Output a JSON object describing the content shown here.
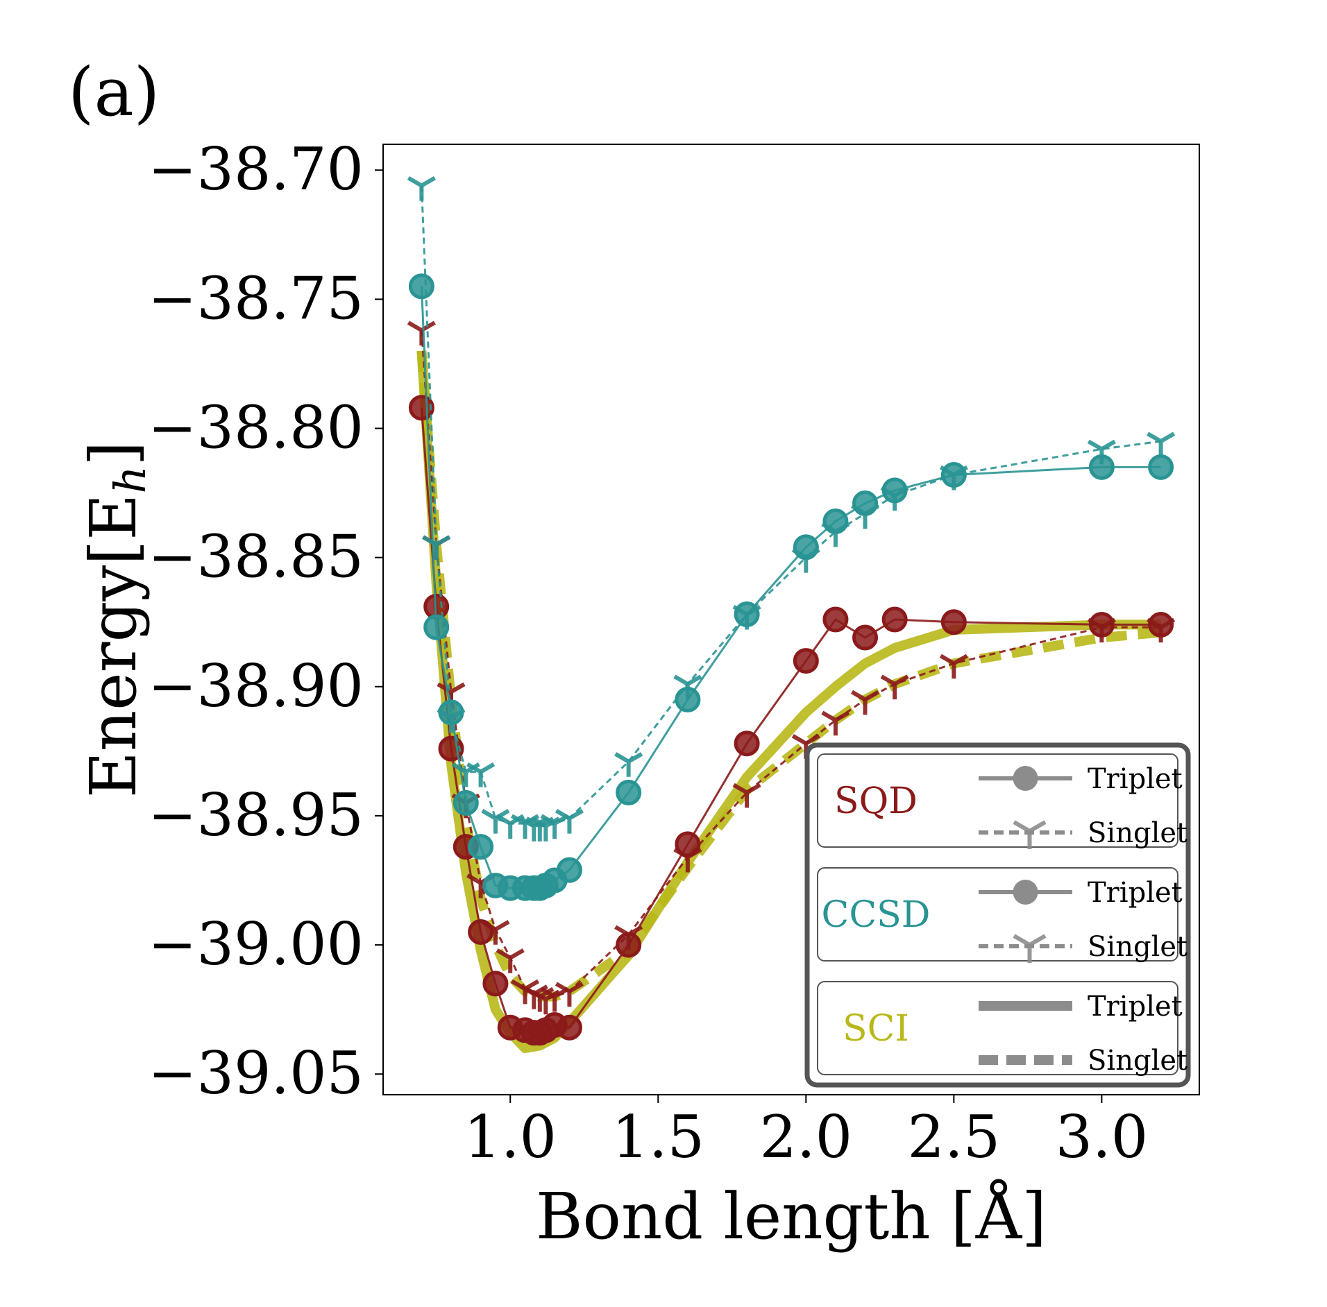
{
  "panel_label": "(a)",
  "colors": {
    "sqd": "#8b1a1a",
    "ccsd": "#2a9494",
    "sci": "#b8b81a",
    "legend_gray": "#8c8c8c",
    "frame": "#555555"
  },
  "chart_data": {
    "type": "line",
    "title": "",
    "xlabel": "Bond length [Å]",
    "ylabel": "Energy[E",
    "ylabel_sub": "h",
    "ylabel_close": "]",
    "xlim": [
      0.57,
      3.33
    ],
    "ylim": [
      -39.058,
      -38.69
    ],
    "xticks": [
      1.0,
      1.5,
      2.0,
      2.5,
      3.0
    ],
    "xtick_labels": [
      "1.0",
      "1.5",
      "2.0",
      "2.5",
      "3.0"
    ],
    "yticks": [
      -38.7,
      -38.75,
      -38.8,
      -38.85,
      -38.9,
      -38.95,
      -39.0,
      -39.05
    ],
    "ytick_labels": [
      "−38.70",
      "−38.75",
      "−38.80",
      "−38.85",
      "−38.90",
      "−38.95",
      "−39.00",
      "−39.05"
    ],
    "series": [
      {
        "name": "SCI Triplet",
        "method": "SCI",
        "state": "Triplet",
        "color_key": "sci",
        "style": "solid",
        "marker": "none",
        "x": [
          0.7,
          0.75,
          0.8,
          0.85,
          0.9,
          0.95,
          1.0,
          1.05,
          1.1,
          1.15,
          1.2,
          1.4,
          1.6,
          1.8,
          2.0,
          2.1,
          2.2,
          2.3,
          2.5,
          3.0,
          3.2
        ],
        "y": [
          -38.77,
          -38.86,
          -38.93,
          -38.972,
          -39.002,
          -39.025,
          -39.034,
          -39.04,
          -39.039,
          -39.036,
          -39.03,
          -39.004,
          -38.968,
          -38.935,
          -38.91,
          -38.9,
          -38.891,
          -38.885,
          -38.878,
          -38.876,
          -38.876
        ]
      },
      {
        "name": "SCI Singlet",
        "method": "SCI",
        "state": "Singlet",
        "color_key": "sci",
        "style": "dashed",
        "marker": "none",
        "x": [
          0.7,
          0.75,
          0.8,
          0.85,
          0.9,
          0.95,
          1.0,
          1.05,
          1.1,
          1.15,
          1.2,
          1.4,
          1.6,
          1.8,
          2.0,
          2.1,
          2.2,
          2.3,
          2.5,
          3.0,
          3.2
        ],
        "y": [
          -38.77,
          -38.845,
          -38.905,
          -38.952,
          -38.982,
          -39.0,
          -39.012,
          -39.018,
          -39.02,
          -39.02,
          -39.018,
          -39.002,
          -38.97,
          -38.94,
          -38.922,
          -38.913,
          -38.905,
          -38.899,
          -38.891,
          -38.881,
          -38.879
        ]
      },
      {
        "name": "SQD Triplet",
        "method": "SQD",
        "state": "Triplet",
        "color_key": "sqd",
        "style": "solid",
        "marker": "circle",
        "x": [
          0.7,
          0.75,
          0.8,
          0.85,
          0.9,
          0.95,
          1.0,
          1.05,
          1.08,
          1.1,
          1.12,
          1.15,
          1.2,
          1.4,
          1.6,
          1.8,
          2.0,
          2.1,
          2.2,
          2.3,
          2.5,
          3.0,
          3.2
        ],
        "y": [
          -38.792,
          -38.869,
          -38.924,
          -38.962,
          -38.995,
          -39.015,
          -39.032,
          -39.033,
          -39.034,
          -39.034,
          -39.033,
          -39.031,
          -39.032,
          -39.0,
          -38.961,
          -38.922,
          -38.89,
          -38.874,
          -38.881,
          -38.874,
          -38.875,
          -38.876,
          -38.876
        ]
      },
      {
        "name": "SQD Singlet",
        "method": "SQD",
        "state": "Singlet",
        "color_key": "sqd",
        "style": "dashed",
        "marker": "tri",
        "x": [
          0.7,
          0.75,
          0.8,
          0.85,
          0.9,
          0.95,
          1.0,
          1.05,
          1.08,
          1.1,
          1.12,
          1.15,
          1.2,
          1.4,
          1.6,
          1.8,
          2.0,
          2.1,
          2.2,
          2.3,
          2.5,
          3.0,
          3.2
        ],
        "y": [
          -38.762,
          -38.845,
          -38.902,
          -38.945,
          -38.976,
          -38.994,
          -39.005,
          -39.017,
          -39.019,
          -39.02,
          -39.021,
          -39.02,
          -39.018,
          -38.996,
          -38.966,
          -38.941,
          -38.922,
          -38.913,
          -38.905,
          -38.899,
          -38.891,
          -38.877,
          -38.877
        ]
      },
      {
        "name": "CCSD Triplet",
        "method": "CCSD",
        "state": "Triplet",
        "color_key": "ccsd",
        "style": "solid",
        "marker": "circle",
        "x": [
          0.7,
          0.75,
          0.8,
          0.85,
          0.9,
          0.95,
          1.0,
          1.05,
          1.08,
          1.1,
          1.12,
          1.15,
          1.2,
          1.4,
          1.6,
          1.8,
          2.0,
          2.1,
          2.2,
          2.3,
          2.5,
          3.0,
          3.2
        ],
        "y": [
          -38.745,
          -38.877,
          -38.91,
          -38.945,
          -38.962,
          -38.977,
          -38.978,
          -38.978,
          -38.978,
          -38.978,
          -38.977,
          -38.975,
          -38.971,
          -38.941,
          -38.905,
          -38.872,
          -38.846,
          -38.836,
          -38.829,
          -38.824,
          -38.818,
          -38.815,
          -38.815
        ]
      },
      {
        "name": "CCSD Singlet",
        "method": "CCSD",
        "state": "Singlet",
        "color_key": "ccsd",
        "style": "dashed",
        "marker": "tri",
        "x": [
          0.7,
          0.75,
          0.8,
          0.85,
          0.9,
          0.95,
          1.0,
          1.05,
          1.08,
          1.1,
          1.12,
          1.15,
          1.2,
          1.4,
          1.6,
          1.8,
          2.0,
          2.1,
          2.2,
          2.3,
          2.5,
          3.0,
          3.2
        ],
        "y": [
          -38.706,
          -38.845,
          -38.912,
          -38.933,
          -38.933,
          -38.951,
          -38.953,
          -38.953,
          -38.954,
          -38.954,
          -38.954,
          -38.953,
          -38.951,
          -38.929,
          -38.899,
          -38.872,
          -38.85,
          -38.84,
          -38.833,
          -38.826,
          -38.818,
          -38.808,
          -38.805
        ]
      }
    ],
    "legend": {
      "placement": "lower-right",
      "groups": [
        {
          "method": "SQD",
          "color_key": "sqd",
          "entries": [
            {
              "label": "Triplet",
              "kind": "line-circle"
            },
            {
              "label": "Singlet",
              "kind": "dash-tri"
            }
          ]
        },
        {
          "method": "CCSD",
          "color_key": "ccsd",
          "entries": [
            {
              "label": "Triplet",
              "kind": "line-circle"
            },
            {
              "label": "Singlet",
              "kind": "dash-tri"
            }
          ]
        },
        {
          "method": "SCI",
          "color_key": "sci",
          "entries": [
            {
              "label": "Triplet",
              "kind": "thick-line"
            },
            {
              "label": "Singlet",
              "kind": "thick-dash"
            }
          ]
        }
      ]
    }
  }
}
